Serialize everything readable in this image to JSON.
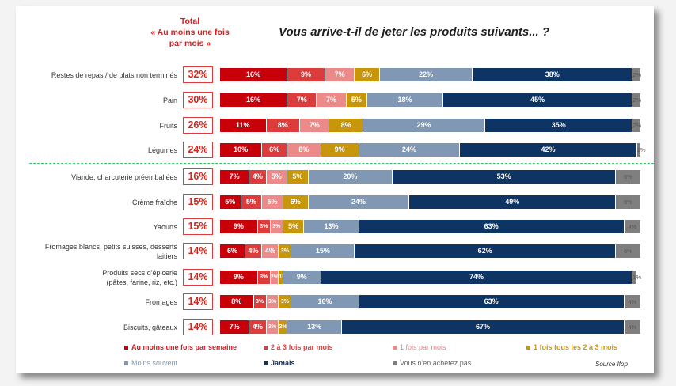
{
  "header": {
    "total_heading": [
      "Total",
      "« Au moins une fois",
      "par mois »"
    ],
    "title": "Vous arrive-t-il de jeter les produits suivants... ?"
  },
  "source": "Source Ifop",
  "colors": {
    "weekly": "#c8000a",
    "two_three_month": "#dc3c3c",
    "once_month": "#ec8a8a",
    "every_2_3_months": "#c8960a",
    "less_often": "#8098b4",
    "never": "#0e3464",
    "dont_buy": "#7f7f7f"
  },
  "chart_data": {
    "type": "bar",
    "orientation": "horizontal-stacked-100",
    "title": "Vous arrive-t-il de jeter les produits suivants... ?",
    "xlabel": "",
    "ylabel": "",
    "legend_position": "bottom",
    "categories": [
      "Restes de repas / de plats non terminés",
      "Pain",
      "Fruits",
      "Légumes",
      "Viande, charcuterie préemballées",
      "Crème fraîche",
      "Yaourts",
      "Fromages blancs, petits suisses, desserts laitiers",
      "Produits secs d'épicerie (pâtes, farine, riz, etc.)",
      "Fromages",
      "Biscuits, gâteaux"
    ],
    "category_lines": [
      [
        "Restes de repas / de plats non terminés"
      ],
      [
        "Pain"
      ],
      [
        "Fruits"
      ],
      [
        "Légumes"
      ],
      [
        "Viande, charcuterie préemballées"
      ],
      [
        "Crème fraîche"
      ],
      [
        "Yaourts"
      ],
      [
        "Fromages blancs, petits suisses, desserts",
        "laitiers"
      ],
      [
        "Produits secs d'épicerie",
        "(pâtes, farine, riz, etc.)"
      ],
      [
        "Fromages"
      ],
      [
        "Biscuits, gâteaux"
      ]
    ],
    "totals_label": "Total « Au moins une fois par mois »",
    "totals": [
      "32%",
      "30%",
      "26%",
      "24%",
      "16%",
      "15%",
      "15%",
      "14%",
      "14%",
      "14%",
      "14%"
    ],
    "series": [
      {
        "name": "Au moins une fois par semaine",
        "key": "weekly",
        "values": [
          16,
          16,
          11,
          10,
          7,
          5,
          9,
          6,
          9,
          8,
          7
        ]
      },
      {
        "name": "2 à 3 fois par mois",
        "key": "two_three_month",
        "values": [
          9,
          7,
          8,
          6,
          4,
          5,
          3,
          4,
          3,
          3,
          4
        ]
      },
      {
        "name": "1 fois par mois",
        "key": "once_month",
        "values": [
          7,
          7,
          7,
          8,
          5,
          5,
          3,
          4,
          2,
          3,
          3
        ]
      },
      {
        "name": "1 fois tous les 2 à 3 mois",
        "key": "every_2_3_months",
        "values": [
          6,
          5,
          8,
          9,
          5,
          6,
          5,
          3,
          1,
          3,
          2
        ]
      },
      {
        "name": "Moins souvent",
        "key": "less_often",
        "values": [
          22,
          18,
          29,
          24,
          20,
          24,
          13,
          15,
          9,
          16,
          13
        ]
      },
      {
        "name": "Jamais",
        "key": "never",
        "values": [
          38,
          45,
          35,
          42,
          53,
          49,
          63,
          62,
          74,
          63,
          67
        ]
      },
      {
        "name": "Vous n'en achetez pas",
        "key": "dont_buy",
        "values": [
          2,
          2,
          2,
          1,
          6,
          6,
          4,
          6,
          1,
          4,
          4
        ]
      }
    ],
    "separator_after_index": 3,
    "xlim": [
      0,
      100
    ]
  },
  "legend": [
    {
      "label": "Au moins une fois par semaine",
      "key": "weekly"
    },
    {
      "label": "2 à 3 fois par mois",
      "key": "two_three_month"
    },
    {
      "label": "1 fois par mois",
      "key": "once_month"
    },
    {
      "label": "1 fois tous les 2 à 3 mois",
      "key": "every_2_3_months"
    },
    {
      "label": "Moins souvent",
      "key": "less_often"
    },
    {
      "label": "Jamais",
      "key": "never"
    },
    {
      "label": "Vous n'en achetez pas",
      "key": "dont_buy"
    }
  ]
}
